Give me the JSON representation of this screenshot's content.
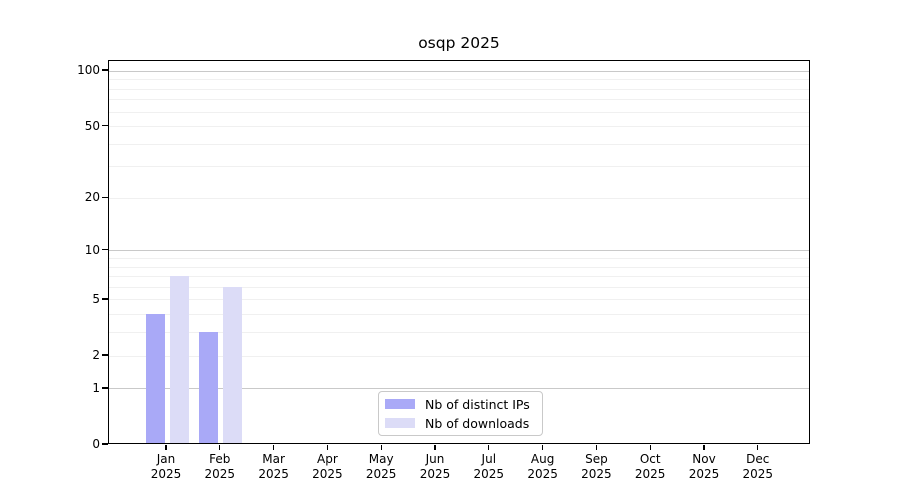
{
  "chart_data": {
    "type": "bar",
    "title": "osqp 2025",
    "yscale": "log1p",
    "categories": [
      "Jan",
      "Feb",
      "Mar",
      "Apr",
      "May",
      "Jun",
      "Jul",
      "Aug",
      "Sep",
      "Oct",
      "Nov",
      "Dec"
    ],
    "year": "2025",
    "series": [
      {
        "name": "Nb of distinct IPs",
        "color": "#a9a9f7",
        "values": [
          4,
          3,
          0,
          0,
          0,
          0,
          0,
          0,
          0,
          0,
          0,
          0
        ]
      },
      {
        "name": "Nb of downloads",
        "color": "#dcdcf7",
        "values": [
          7,
          6,
          0,
          0,
          0,
          0,
          0,
          0,
          0,
          0,
          0,
          0
        ]
      }
    ],
    "y_axis": {
      "tick_labels": [
        "100",
        "50",
        "20",
        "10",
        "5",
        "2",
        "1",
        "0"
      ],
      "tick_values": [
        100,
        50,
        20,
        10,
        5,
        2,
        1,
        0
      ],
      "ylim": [
        0,
        113
      ]
    },
    "grid": {
      "major": [
        1,
        10,
        100
      ],
      "minor": [
        2,
        3,
        4,
        5,
        6,
        7,
        8,
        9,
        20,
        30,
        40,
        50,
        60,
        70,
        80,
        90
      ]
    },
    "legend": {
      "position": "lower center"
    }
  }
}
